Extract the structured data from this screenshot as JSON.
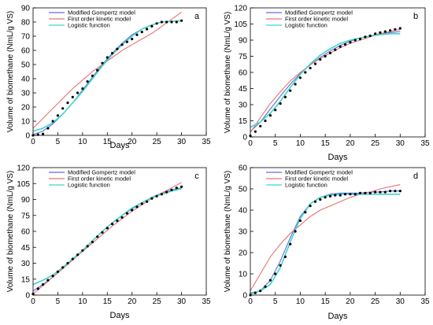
{
  "chart_data": [
    {
      "type": "line",
      "panel_label": "a",
      "xlabel": "Days",
      "ylabel": "Volume of biomethane (NmL/g VS)",
      "xlim": [
        0,
        35
      ],
      "ylim": [
        0,
        90
      ],
      "xticks": [
        0,
        5,
        10,
        15,
        20,
        25,
        30,
        35
      ],
      "yticks": [
        0,
        10,
        20,
        30,
        40,
        50,
        60,
        70,
        80,
        90
      ],
      "legend": [
        "Modified Gompertz model",
        "First order kinetic model",
        "Logistic function"
      ],
      "legend_position": "top-left",
      "series": [
        {
          "name": "Modified Gompertz model",
          "color": "#5f6ee0",
          "x": [
            0,
            2,
            4,
            6,
            8,
            10,
            12,
            14,
            16,
            18,
            20,
            22,
            24,
            26,
            28,
            30
          ],
          "y": [
            0.5,
            3,
            8,
            15,
            23,
            32,
            41,
            50,
            58,
            65,
            71,
            75,
            78,
            80,
            80.5,
            81
          ]
        },
        {
          "name": "First order kinetic model",
          "color": "#e8736f",
          "x": [
            0,
            2,
            4,
            6,
            8,
            10,
            12,
            14,
            16,
            18,
            20,
            22,
            24,
            26,
            28,
            30
          ],
          "y": [
            5,
            12,
            19,
            26,
            33,
            39,
            45,
            50,
            55,
            60,
            64,
            68,
            72,
            77,
            82,
            87
          ]
        },
        {
          "name": "Logistic function",
          "color": "#3fd6c8",
          "x": [
            0,
            2,
            4,
            6,
            8,
            10,
            12,
            14,
            16,
            18,
            20,
            22,
            24,
            26,
            28,
            30
          ],
          "y": [
            3,
            5,
            9,
            15,
            23,
            31,
            40,
            49,
            57,
            64,
            70,
            75,
            78,
            80,
            80.5,
            81
          ]
        },
        {
          "name": "",
          "style": "points",
          "color": "#000000",
          "x": [
            0,
            1,
            2,
            3,
            4,
            5,
            6,
            7,
            8,
            9,
            10,
            11,
            12,
            13,
            14,
            15,
            16,
            17,
            18,
            19,
            20,
            21,
            22,
            23,
            24,
            25,
            26,
            27,
            28,
            29,
            30
          ],
          "y": [
            0,
            0.5,
            1,
            5,
            10,
            14,
            19,
            23,
            27,
            30,
            33,
            38,
            42,
            46,
            51,
            55,
            58,
            61,
            64,
            66,
            68,
            71,
            73,
            75,
            77,
            79,
            80,
            80,
            80,
            80,
            81
          ]
        }
      ]
    },
    {
      "type": "line",
      "panel_label": "b",
      "xlabel": "Days",
      "ylabel": "Volume of biomethane (NmL/g VS)",
      "xlim": [
        0,
        35
      ],
      "ylim": [
        0,
        120
      ],
      "xticks": [
        0,
        5,
        10,
        15,
        20,
        25,
        30,
        35
      ],
      "yticks": [
        0,
        15,
        30,
        45,
        60,
        75,
        90,
        105,
        120
      ],
      "legend": [
        "Modified Gompertz model",
        "First order kinetic model",
        "Logistic function"
      ],
      "legend_position": "top-left",
      "series": [
        {
          "name": "Modified Gompertz model",
          "color": "#5f6ee0",
          "x": [
            0,
            2,
            4,
            6,
            8,
            10,
            12,
            14,
            16,
            18,
            20,
            22,
            24,
            26,
            28,
            30
          ],
          "y": [
            5,
            14,
            26,
            38,
            49,
            59,
            67,
            74,
            80,
            85,
            89,
            92,
            94,
            96,
            97,
            98
          ]
        },
        {
          "name": "First order kinetic model",
          "color": "#e8736f",
          "x": [
            0,
            2,
            4,
            6,
            8,
            10,
            12,
            14,
            16,
            18,
            20,
            22,
            24,
            26,
            28,
            30
          ],
          "y": [
            4,
            18,
            31,
            42,
            52,
            60,
            67,
            73,
            78,
            83,
            87,
            90,
            93,
            96,
            98,
            100
          ]
        },
        {
          "name": "Logistic function",
          "color": "#3fd6c8",
          "x": [
            0,
            2,
            4,
            6,
            8,
            10,
            12,
            14,
            16,
            18,
            20,
            22,
            24,
            26,
            28,
            30
          ],
          "y": [
            9,
            14,
            22,
            33,
            46,
            58,
            68,
            76,
            82,
            87,
            90,
            92,
            94,
            95,
            96,
            96
          ]
        },
        {
          "name": "",
          "style": "points",
          "color": "#000000",
          "x": [
            0,
            1,
            2,
            3,
            4,
            5,
            6,
            7,
            8,
            9,
            10,
            11,
            12,
            13,
            14,
            15,
            16,
            17,
            18,
            19,
            20,
            21,
            22,
            23,
            24,
            25,
            26,
            27,
            28,
            29,
            30
          ],
          "y": [
            1,
            5,
            10,
            15,
            20,
            25,
            31,
            37,
            43,
            49,
            55,
            60,
            64,
            68,
            72,
            75,
            78,
            81,
            84,
            86,
            88,
            90,
            91,
            93,
            94,
            96,
            97,
            98,
            99,
            100,
            101
          ]
        }
      ]
    },
    {
      "type": "line",
      "panel_label": "c",
      "xlabel": "Days",
      "ylabel": "Volume of biomethane (NmL/g VS)",
      "xlim": [
        0,
        35
      ],
      "ylim": [
        0,
        120
      ],
      "xticks": [
        0,
        5,
        10,
        15,
        20,
        25,
        30,
        35
      ],
      "yticks": [
        0,
        15,
        30,
        45,
        60,
        75,
        90,
        105,
        120
      ],
      "legend": [
        "Modified Gompertz model",
        "First order kinetic model",
        "Logistic function"
      ],
      "legend_position": "top-left",
      "series": [
        {
          "name": "Modified Gompertz model",
          "color": "#5f6ee0",
          "x": [
            0,
            2,
            4,
            6,
            8,
            10,
            12,
            14,
            16,
            18,
            20,
            22,
            24,
            26,
            28,
            30
          ],
          "y": [
            4,
            10,
            17,
            25,
            33,
            42,
            51,
            60,
            68,
            75,
            81,
            87,
            92,
            96,
            99,
            101
          ]
        },
        {
          "name": "First order kinetic model",
          "color": "#e8736f",
          "x": [
            0,
            2,
            4,
            6,
            8,
            10,
            12,
            14,
            16,
            18,
            20,
            22,
            24,
            26,
            28,
            30
          ],
          "y": [
            1,
            9,
            17,
            25,
            33,
            41,
            49,
            57,
            65,
            72,
            79,
            85,
            91,
            96,
            101,
            106
          ]
        },
        {
          "name": "Logistic function",
          "color": "#3fd6c8",
          "x": [
            0,
            2,
            4,
            6,
            8,
            10,
            12,
            14,
            16,
            18,
            20,
            22,
            24,
            26,
            28,
            30
          ],
          "y": [
            10,
            14,
            19,
            26,
            34,
            42,
            51,
            60,
            68,
            75,
            82,
            87,
            92,
            95,
            98,
            100
          ]
        },
        {
          "name": "",
          "style": "points",
          "color": "#000000",
          "x": [
            0,
            1,
            2,
            3,
            4,
            5,
            6,
            7,
            8,
            9,
            10,
            11,
            12,
            13,
            14,
            15,
            16,
            17,
            18,
            19,
            20,
            21,
            22,
            23,
            24,
            25,
            26,
            27,
            28,
            29,
            30
          ],
          "y": [
            1,
            6,
            10,
            14,
            18,
            22,
            26,
            30,
            34,
            38,
            42,
            46,
            50,
            55,
            59,
            63,
            67,
            70,
            73,
            77,
            80,
            83,
            86,
            88,
            91,
            93,
            95,
            97,
            99,
            101,
            102
          ]
        }
      ]
    },
    {
      "type": "line",
      "panel_label": "d",
      "xlabel": "Days",
      "ylabel": "Volume of biomethane (NmL/g VS)",
      "xlim": [
        0,
        35
      ],
      "ylim": [
        0,
        60
      ],
      "xticks": [
        0,
        5,
        10,
        15,
        20,
        25,
        30,
        35
      ],
      "yticks": [
        0,
        10,
        20,
        30,
        40,
        50,
        60
      ],
      "legend": [
        "Modified Gompertz model",
        "First order kinetic model",
        "Logistic function"
      ],
      "legend_position": "top-left",
      "series": [
        {
          "name": "Modified Gompertz model",
          "color": "#5f6ee0",
          "x": [
            0,
            2,
            4,
            6,
            8,
            10,
            12,
            14,
            16,
            18,
            20,
            22,
            24,
            26,
            28,
            30
          ],
          "y": [
            0.5,
            2,
            7,
            16,
            27,
            37,
            43,
            46,
            47.5,
            48,
            48,
            48,
            48.5,
            48.5,
            49,
            49
          ]
        },
        {
          "name": "First order kinetic model",
          "color": "#e8736f",
          "x": [
            0,
            2,
            4,
            6,
            8,
            10,
            12,
            14,
            16,
            18,
            20,
            22,
            24,
            26,
            28,
            30
          ],
          "y": [
            2,
            10,
            18,
            24,
            29,
            33,
            37,
            40,
            42,
            44,
            46,
            47.5,
            48.5,
            50,
            51,
            52
          ]
        },
        {
          "name": "Logistic function",
          "color": "#3fd6c8",
          "x": [
            0,
            2,
            4,
            6,
            8,
            10,
            12,
            14,
            16,
            18,
            20,
            22,
            24,
            26,
            28,
            30
          ],
          "y": [
            1,
            2,
            5,
            13,
            25,
            36,
            43,
            46,
            47,
            47.5,
            47.5,
            47.5,
            47.5,
            47.5,
            47.5,
            47.5
          ]
        },
        {
          "name": "",
          "style": "points",
          "color": "#000000",
          "x": [
            0,
            1,
            2,
            3,
            4,
            5,
            6,
            7,
            8,
            9,
            10,
            11,
            12,
            13,
            14,
            15,
            16,
            17,
            18,
            19,
            20,
            21,
            22,
            23,
            24,
            25,
            26,
            27,
            28,
            29,
            30
          ],
          "y": [
            0,
            1,
            2,
            4,
            7,
            10,
            14,
            18,
            24,
            30,
            35,
            39,
            42,
            44,
            45,
            46,
            46.5,
            47,
            47,
            47.5,
            47.5,
            47.5,
            48,
            48,
            48,
            48.5,
            48.5,
            48.5,
            49,
            49,
            49
          ]
        }
      ]
    }
  ]
}
